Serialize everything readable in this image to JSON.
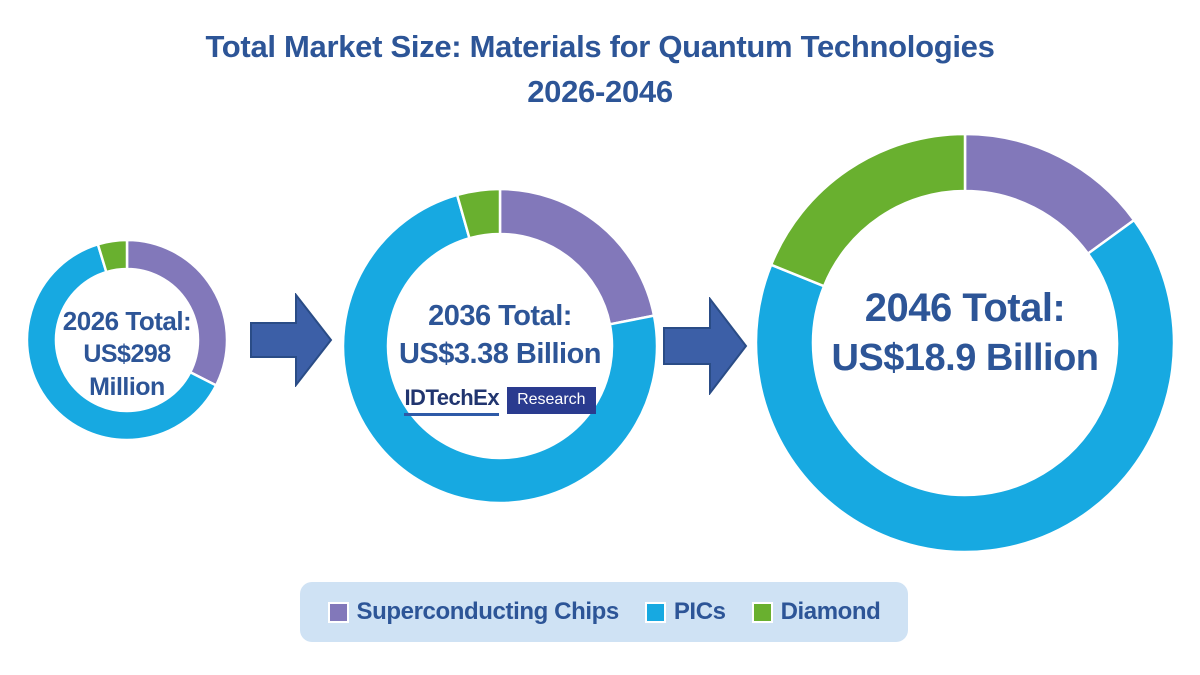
{
  "title": {
    "line1": "Total Market Size: Materials for Quantum Technologies",
    "line2": "2026-2046"
  },
  "logo": {
    "brand": "IDTechEx",
    "suffix": "Research"
  },
  "legend": {
    "items": [
      {
        "label": "Superconducting Chips",
        "color": "#8278ba"
      },
      {
        "label": "PICs",
        "color": "#17a9e1"
      },
      {
        "label": "Diamond",
        "color": "#69b02f"
      }
    ]
  },
  "colors": {
    "title_text": "#2d5597",
    "arrow_fill": "#3c5fa7",
    "arrow_border": "#2a4c86",
    "legend_background": "#cfe2f4",
    "logo_navy": "#2a3b8f",
    "segment_gap": "#ffffff"
  },
  "chart_data": {
    "type": "pie",
    "subtype": "donut-progression",
    "title": "Total Market Size: Materials for Quantum Technologies 2026-2046",
    "legend_position": "bottom",
    "rotation_start_deg": 0,
    "direction": "clockwise",
    "series_names": [
      "Superconducting Chips",
      "PICs",
      "Diamond"
    ],
    "donuts": [
      {
        "year": "2026",
        "total_label": "US$298 Million",
        "total_value_million_usd": 298,
        "label_lines": [
          "2026 Total:",
          "US$298",
          "Million"
        ],
        "segments": [
          {
            "name": "Superconducting Chips",
            "pct": 32.5
          },
          {
            "name": "PICs",
            "pct": 62.8
          },
          {
            "name": "Diamond",
            "pct": 4.7
          }
        ]
      },
      {
        "year": "2036",
        "total_label": "US$3.38 Billion",
        "total_value_million_usd": 3380,
        "label_lines": [
          "2036 Total:",
          "US$3.38 Billion"
        ],
        "segments": [
          {
            "name": "Superconducting Chips",
            "pct": 21.9
          },
          {
            "name": "PICs",
            "pct": 73.7
          },
          {
            "name": "Diamond",
            "pct": 4.4
          }
        ]
      },
      {
        "year": "2046",
        "total_label": "US$18.9 Billion",
        "total_value_million_usd": 18900,
        "label_lines": [
          "2046 Total:",
          "US$18.9 Billion"
        ],
        "segments": [
          {
            "name": "Superconducting Chips",
            "pct": 15.0
          },
          {
            "name": "PICs",
            "pct": 66.1
          },
          {
            "name": "Diamond",
            "pct": 18.9
          }
        ]
      }
    ]
  }
}
